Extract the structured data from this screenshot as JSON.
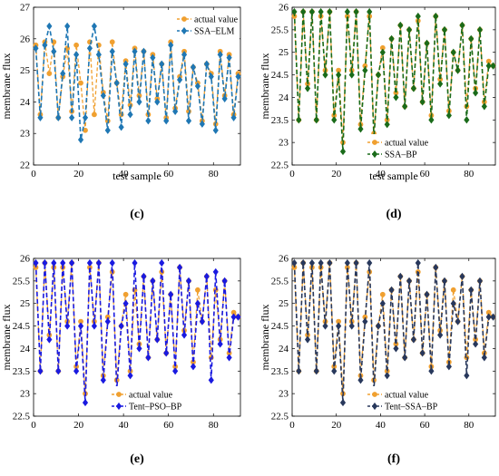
{
  "figure": {
    "x_label": "test sample",
    "y_label": "membrane flux"
  },
  "colors": {
    "actual": "#f0a030",
    "ssa_elm": "#1f77b4",
    "ssa_bp": "#1a6b1a",
    "tent_pso_bp": "#1a1ae0",
    "tent_ssa_bp": "#28385c"
  },
  "chart_data": [
    {
      "type": "line",
      "panel_label": "(c)",
      "xlabel": "test sample",
      "ylabel": "membrane flux",
      "xlim": [
        0,
        92
      ],
      "ylim": [
        22,
        27
      ],
      "xticks": [
        0,
        20,
        40,
        60,
        80
      ],
      "yticks": [
        22,
        23,
        24,
        25,
        26,
        27
      ],
      "legend_position": "top-right",
      "series": [
        {
          "name": "actual value",
          "color": "#f0a030",
          "marker": "circle",
          "style": "dashed",
          "x": [
            1,
            3,
            5,
            7,
            9,
            11,
            13,
            15,
            17,
            19,
            21,
            23,
            25,
            27,
            29,
            31,
            33,
            35,
            37,
            39,
            41,
            43,
            45,
            47,
            49,
            51,
            53,
            55,
            57,
            59,
            61,
            63,
            65,
            67,
            69,
            71,
            73,
            75,
            77,
            79,
            81,
            83,
            85,
            87,
            89,
            91
          ],
          "values": [
            25.8,
            23.6,
            25.9,
            24.9,
            25.9,
            23.5,
            24.8,
            25.7,
            23.7,
            25.8,
            24.6,
            23.1,
            25.9,
            23.6,
            25.8,
            24.3,
            23.4,
            25.9,
            24.6,
            23.6,
            25.3,
            23.9,
            25.7,
            24.2,
            25.6,
            23.6,
            25.5,
            24.1,
            25.2,
            23.5,
            25.9,
            23.8,
            24.8,
            25.6,
            23.7,
            25.1,
            24.6,
            23.4,
            25.2,
            24.9,
            23.3,
            25.6,
            24.2,
            25.5,
            23.6,
            24.9
          ]
        },
        {
          "name": "SSA–ELM",
          "color": "#1f77b4",
          "marker": "diamond",
          "style": "dashed",
          "x": [
            1,
            3,
            5,
            7,
            9,
            11,
            13,
            15,
            17,
            19,
            21,
            23,
            25,
            27,
            29,
            31,
            33,
            35,
            37,
            39,
            41,
            43,
            45,
            47,
            49,
            51,
            53,
            55,
            57,
            59,
            61,
            63,
            65,
            67,
            69,
            71,
            73,
            75,
            77,
            79,
            81,
            83,
            85,
            87,
            89,
            91
          ],
          "values": [
            25.7,
            23.5,
            25.8,
            26.4,
            25.6,
            23.5,
            24.9,
            26.4,
            23.5,
            25.5,
            22.8,
            23.5,
            25.7,
            26.4,
            25.5,
            24.2,
            23.1,
            25.6,
            24.6,
            23.2,
            25.2,
            23.6,
            25.6,
            24.0,
            25.6,
            23.4,
            25.4,
            24.0,
            25.2,
            23.4,
            25.8,
            23.7,
            24.7,
            25.5,
            23.4,
            25.1,
            24.5,
            23.3,
            25.2,
            24.8,
            23.1,
            25.5,
            24.1,
            25.4,
            23.5,
            24.8
          ]
        }
      ]
    },
    {
      "type": "line",
      "panel_label": "(d)",
      "xlabel": "test sample",
      "ylabel": "membrane flux",
      "xlim": [
        0,
        92
      ],
      "ylim": [
        22.5,
        26
      ],
      "xticks": [
        0,
        20,
        40,
        60,
        80
      ],
      "yticks": [
        22.5,
        23,
        23.5,
        24,
        24.5,
        25,
        25.5,
        26
      ],
      "legend_position": "bottom-center",
      "series": [
        {
          "name": "actual value",
          "color": "#f0a030",
          "marker": "circle",
          "style": "dashed",
          "x": [
            1,
            3,
            5,
            7,
            9,
            11,
            13,
            15,
            17,
            19,
            21,
            23,
            25,
            27,
            29,
            31,
            33,
            35,
            37,
            39,
            41,
            43,
            45,
            47,
            49,
            51,
            53,
            55,
            57,
            59,
            61,
            63,
            65,
            67,
            69,
            71,
            73,
            75,
            77,
            79,
            81,
            83,
            85,
            87,
            89,
            91
          ],
          "values": [
            25.8,
            23.5,
            25.9,
            24.3,
            25.9,
            23.5,
            25.8,
            24.6,
            25.9,
            23.6,
            24.6,
            23.0,
            25.8,
            24.6,
            25.9,
            23.4,
            24.7,
            25.8,
            23.2,
            24.5,
            25.1,
            23.5,
            25.3,
            24.1,
            25.6,
            23.8,
            25.5,
            24.2,
            25.7,
            23.9,
            25.2,
            23.6,
            25.8,
            24.4,
            25.5,
            23.7,
            25.0,
            24.6,
            25.6,
            23.8,
            25.3,
            24.2,
            25.5,
            23.9,
            24.8,
            24.7
          ]
        },
        {
          "name": "SSA–BP",
          "color": "#1a6b1a",
          "marker": "diamond",
          "style": "dashed",
          "x": [
            1,
            3,
            5,
            7,
            9,
            11,
            13,
            15,
            17,
            19,
            21,
            23,
            25,
            27,
            29,
            31,
            33,
            35,
            37,
            39,
            41,
            43,
            45,
            47,
            49,
            51,
            53,
            55,
            57,
            59,
            61,
            63,
            65,
            67,
            69,
            71,
            73,
            75,
            77,
            79,
            81,
            83,
            85,
            87,
            89,
            91
          ],
          "values": [
            25.9,
            23.5,
            25.9,
            24.2,
            25.9,
            23.5,
            25.9,
            24.5,
            25.9,
            23.5,
            24.5,
            22.8,
            25.9,
            24.5,
            25.9,
            23.3,
            24.6,
            25.9,
            23.1,
            24.5,
            25.0,
            23.4,
            25.3,
            24.0,
            25.6,
            23.8,
            25.5,
            24.2,
            25.8,
            23.9,
            25.2,
            23.5,
            25.8,
            24.3,
            25.5,
            23.6,
            25.0,
            24.6,
            25.6,
            23.5,
            25.3,
            24.1,
            25.5,
            23.8,
            24.7,
            24.7
          ]
        }
      ]
    },
    {
      "type": "line",
      "panel_label": "(e)",
      "xlabel": "",
      "ylabel": "membrane flux",
      "xlim": [
        0,
        92
      ],
      "ylim": [
        22.5,
        26
      ],
      "xticks": [
        0,
        20,
        40,
        60,
        80
      ],
      "yticks": [
        22.5,
        23,
        23.5,
        24,
        24.5,
        25,
        25.5,
        26
      ],
      "legend_position": "bottom-center",
      "series": [
        {
          "name": "actual value",
          "color": "#f0a030",
          "marker": "circle",
          "style": "dashed",
          "x": [
            1,
            3,
            5,
            7,
            9,
            11,
            13,
            15,
            17,
            19,
            21,
            23,
            25,
            27,
            29,
            31,
            33,
            35,
            37,
            39,
            41,
            43,
            45,
            47,
            49,
            51,
            53,
            55,
            57,
            59,
            61,
            63,
            65,
            67,
            69,
            71,
            73,
            75,
            77,
            79,
            81,
            83,
            85,
            87,
            89,
            91
          ],
          "values": [
            25.8,
            23.5,
            25.9,
            24.3,
            25.8,
            23.5,
            25.8,
            24.6,
            25.9,
            23.6,
            24.6,
            23.0,
            25.8,
            24.6,
            25.9,
            23.4,
            24.7,
            25.7,
            23.3,
            24.5,
            25.2,
            23.5,
            25.3,
            24.1,
            25.6,
            23.8,
            25.5,
            24.2,
            25.7,
            23.9,
            25.2,
            23.6,
            25.8,
            24.4,
            25.5,
            23.7,
            25.3,
            24.6,
            25.6,
            23.8,
            25.3,
            24.2,
            25.5,
            23.9,
            24.8,
            24.7
          ]
        },
        {
          "name": "Tent–PSO–BP",
          "color": "#1a1ae0",
          "marker": "diamond",
          "style": "dashed",
          "x": [
            1,
            3,
            5,
            7,
            9,
            11,
            13,
            15,
            17,
            19,
            21,
            23,
            25,
            27,
            29,
            31,
            33,
            35,
            37,
            39,
            41,
            43,
            45,
            47,
            49,
            51,
            53,
            55,
            57,
            59,
            61,
            63,
            65,
            67,
            69,
            71,
            73,
            75,
            77,
            79,
            81,
            83,
            85,
            87,
            89,
            91
          ],
          "values": [
            25.9,
            23.5,
            25.9,
            24.2,
            25.9,
            23.5,
            25.9,
            24.5,
            25.9,
            23.5,
            24.5,
            22.8,
            25.9,
            24.5,
            25.9,
            23.3,
            24.6,
            25.9,
            23.1,
            24.5,
            25.0,
            23.4,
            25.9,
            24.0,
            25.6,
            23.8,
            25.5,
            24.2,
            25.9,
            23.9,
            25.2,
            23.5,
            25.8,
            24.3,
            25.5,
            23.6,
            25.0,
            24.6,
            25.6,
            23.3,
            25.7,
            24.1,
            25.5,
            23.8,
            24.7,
            24.7
          ]
        }
      ]
    },
    {
      "type": "line",
      "panel_label": "(f)",
      "xlabel": "",
      "ylabel": "membrane flux",
      "xlim": [
        0,
        92
      ],
      "ylim": [
        22.5,
        26
      ],
      "xticks": [
        0,
        20,
        40,
        60,
        80
      ],
      "yticks": [
        22.5,
        23,
        23.5,
        24,
        24.5,
        25,
        25.5,
        26
      ],
      "legend_position": "bottom-center",
      "series": [
        {
          "name": "actual value",
          "color": "#f0a030",
          "marker": "circle",
          "style": "dashed",
          "x": [
            1,
            3,
            5,
            7,
            9,
            11,
            13,
            15,
            17,
            19,
            21,
            23,
            25,
            27,
            29,
            31,
            33,
            35,
            37,
            39,
            41,
            43,
            45,
            47,
            49,
            51,
            53,
            55,
            57,
            59,
            61,
            63,
            65,
            67,
            69,
            71,
            73,
            75,
            77,
            79,
            81,
            83,
            85,
            87,
            89,
            91
          ],
          "values": [
            25.8,
            23.5,
            25.9,
            24.3,
            25.8,
            23.5,
            25.8,
            24.6,
            25.9,
            23.6,
            24.6,
            23.0,
            25.8,
            24.6,
            25.9,
            23.4,
            24.7,
            25.7,
            23.3,
            24.5,
            25.2,
            23.5,
            25.3,
            24.1,
            25.6,
            23.8,
            25.5,
            24.2,
            25.7,
            23.9,
            25.2,
            23.6,
            25.8,
            24.4,
            25.5,
            23.7,
            25.3,
            24.6,
            25.6,
            23.8,
            25.3,
            24.2,
            25.5,
            23.9,
            24.8,
            24.7
          ]
        },
        {
          "name": "Tent–SSA–BP",
          "color": "#28385c",
          "marker": "diamond",
          "style": "dashed",
          "x": [
            1,
            3,
            5,
            7,
            9,
            11,
            13,
            15,
            17,
            19,
            21,
            23,
            25,
            27,
            29,
            31,
            33,
            35,
            37,
            39,
            41,
            43,
            45,
            47,
            49,
            51,
            53,
            55,
            57,
            59,
            61,
            63,
            65,
            67,
            69,
            71,
            73,
            75,
            77,
            79,
            81,
            83,
            85,
            87,
            89,
            91
          ],
          "values": [
            25.9,
            23.5,
            25.9,
            24.2,
            25.9,
            23.5,
            25.9,
            24.5,
            25.9,
            23.5,
            24.5,
            22.8,
            25.9,
            24.5,
            25.9,
            23.3,
            24.6,
            25.9,
            23.1,
            24.5,
            25.0,
            23.4,
            25.3,
            24.0,
            25.6,
            23.8,
            25.5,
            24.2,
            25.9,
            23.9,
            25.2,
            23.5,
            25.8,
            24.3,
            25.5,
            23.6,
            25.0,
            24.6,
            25.6,
            23.4,
            25.3,
            24.1,
            25.5,
            23.8,
            24.7,
            24.7
          ]
        }
      ]
    }
  ]
}
